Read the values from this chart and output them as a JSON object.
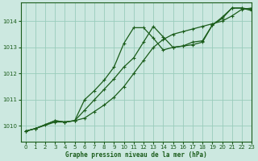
{
  "title": "Graphe pression niveau de la mer (hPa)",
  "bg_color": "#cce8e0",
  "grid_color": "#99ccbb",
  "line_color": "#1a5c1a",
  "xlim": [
    -0.5,
    23
  ],
  "ylim": [
    1009.4,
    1014.7
  ],
  "yticks": [
    1010,
    1011,
    1012,
    1013,
    1014
  ],
  "xticks": [
    0,
    1,
    2,
    3,
    4,
    5,
    6,
    7,
    8,
    9,
    10,
    11,
    12,
    13,
    14,
    15,
    16,
    17,
    18,
    19,
    20,
    21,
    22,
    23
  ],
  "series1_x": [
    0,
    1,
    2,
    3,
    4,
    5,
    6,
    7,
    8,
    9,
    10,
    11,
    12,
    13,
    14,
    15,
    16,
    17,
    18,
    19,
    20,
    21,
    22,
    23
  ],
  "series1_y": [
    1009.8,
    1009.9,
    1010.05,
    1010.2,
    1010.15,
    1010.2,
    1011.0,
    1011.35,
    1011.75,
    1012.25,
    1013.15,
    1013.75,
    1013.75,
    1013.35,
    1012.9,
    1013.0,
    1013.05,
    1013.2,
    1013.25,
    1013.85,
    1014.15,
    1014.5,
    1014.5,
    1014.45
  ],
  "series2_x": [
    0,
    1,
    3,
    4,
    5,
    6,
    7,
    8,
    9,
    10,
    11,
    12,
    13,
    14,
    15,
    16,
    17,
    18,
    19,
    20,
    21,
    22,
    23
  ],
  "series2_y": [
    1009.8,
    1009.9,
    1010.2,
    1010.15,
    1010.2,
    1010.6,
    1011.0,
    1011.4,
    1011.8,
    1012.25,
    1012.6,
    1013.2,
    1013.8,
    1013.4,
    1013.0,
    1013.05,
    1013.1,
    1013.2,
    1013.85,
    1014.1,
    1014.5,
    1014.5,
    1014.4
  ],
  "series3_x": [
    0,
    1,
    3,
    4,
    5,
    6,
    7,
    8,
    9,
    10,
    11,
    12,
    13,
    14,
    15,
    16,
    17,
    18,
    19,
    20,
    21,
    22,
    23
  ],
  "series3_y": [
    1009.8,
    1009.9,
    1010.15,
    1010.15,
    1010.2,
    1010.3,
    1010.55,
    1010.8,
    1011.1,
    1011.5,
    1012.0,
    1012.5,
    1013.0,
    1013.3,
    1013.5,
    1013.6,
    1013.7,
    1013.8,
    1013.9,
    1014.0,
    1014.2,
    1014.45,
    1014.5
  ]
}
